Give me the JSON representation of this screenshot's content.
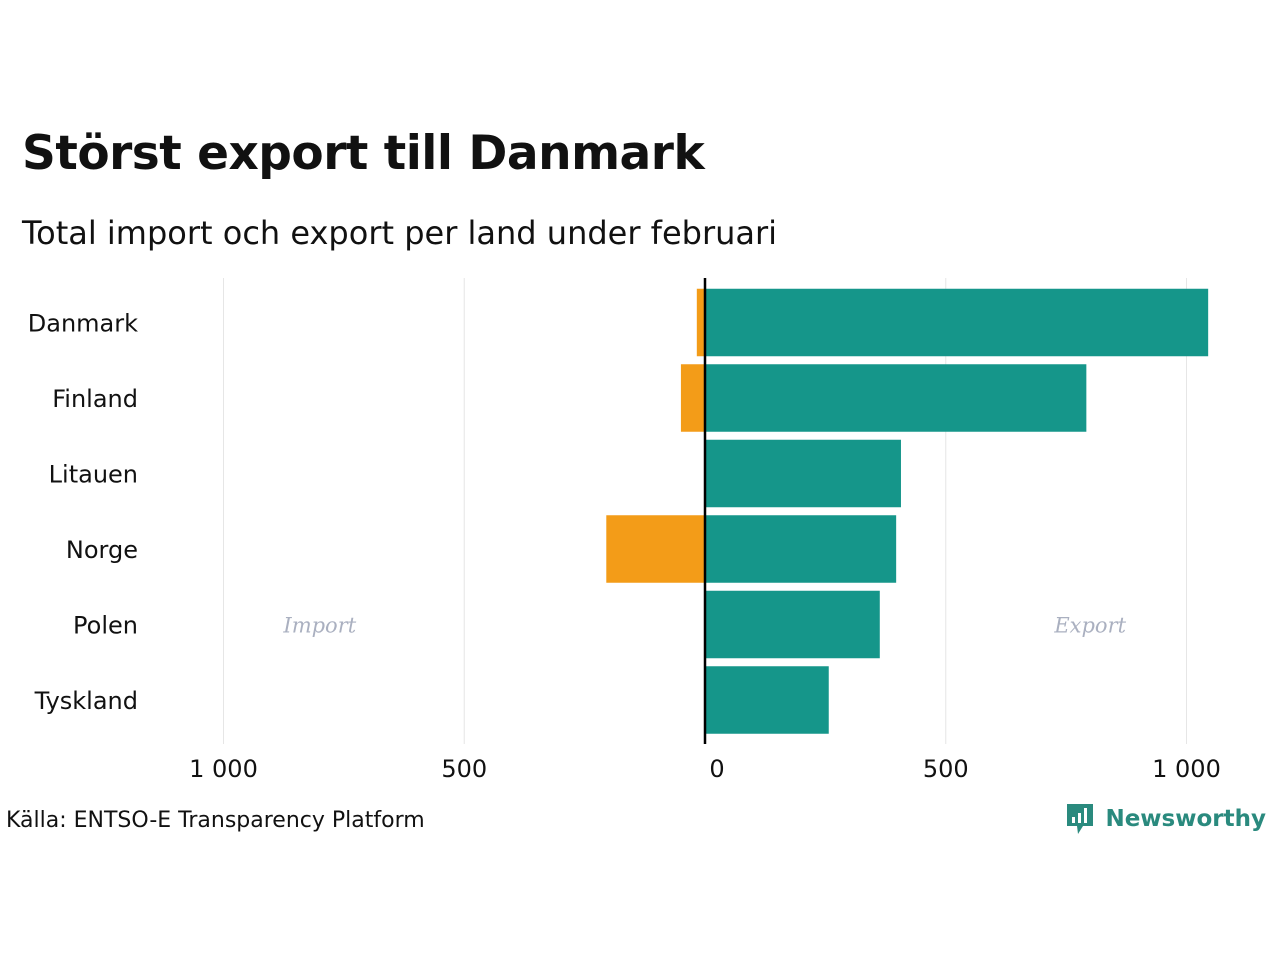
{
  "title": "Störst export till Danmark",
  "subtitle": "Total import och export per land under februari",
  "source": "Källa: ENTSO-E Transparency Platform",
  "brand": {
    "name": "Newsworthy",
    "icon": "newsworthy-logo-icon",
    "color": "#2a8a7e"
  },
  "colors": {
    "import": "#f39c18",
    "export": "#15968a",
    "grid": "#e6e6e6",
    "zero_line": "#000000",
    "annotation": "#aab0c0"
  },
  "chart_data": {
    "type": "bar",
    "orientation": "horizontal",
    "title": "Störst export till Danmark",
    "subtitle": "Total import och export per land under februari",
    "categories": [
      "Danmark",
      "Finland",
      "Litauen",
      "Norge",
      "Polen",
      "Tyskland"
    ],
    "series": [
      {
        "name": "Import",
        "color": "#f39c18",
        "values": [
          -17,
          -50,
          0,
          -205,
          0,
          0
        ]
      },
      {
        "name": "Export",
        "color": "#15968a",
        "values": [
          1045,
          792,
          407,
          397,
          363,
          257
        ]
      }
    ],
    "xlim": [
      -1000,
      1000
    ],
    "xticks": [
      -1000,
      -500,
      0,
      500,
      1000
    ],
    "xtick_labels": [
      "1 000",
      "500",
      "0",
      "500",
      "1 000"
    ],
    "grid": true,
    "annotations": [
      {
        "text": "Import",
        "x": -800,
        "category": "Polen"
      },
      {
        "text": "Export",
        "x": 800,
        "category": "Polen"
      }
    ]
  }
}
